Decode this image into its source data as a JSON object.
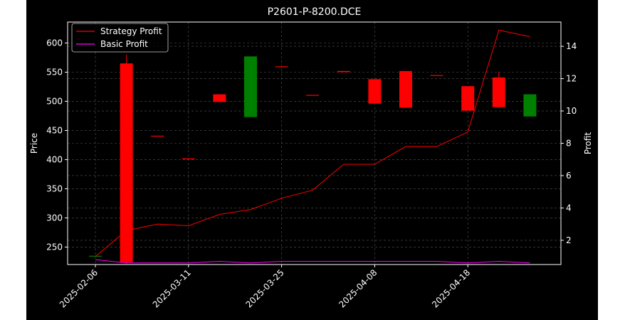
{
  "chart_data": {
    "type": "candlestick",
    "title": "P2601-P-8200.DCE",
    "ylabel": "Price",
    "y2label": "Profit",
    "ylim": [
      220,
      636
    ],
    "y2lim": [
      0.5,
      15.5
    ],
    "grid": true,
    "legend_position": "upper-left",
    "x_ticks": [
      "2025-02-06",
      "2025-03-11",
      "2025-03-25",
      "2025-04-08",
      "2025-04-18"
    ],
    "x_tick_index": [
      0,
      3,
      6,
      9,
      12
    ],
    "yticks": [
      250,
      300,
      350,
      400,
      450,
      500,
      550,
      600
    ],
    "y2ticks": [
      2,
      4,
      6,
      8,
      10,
      12,
      14
    ],
    "candles": [
      {
        "open": 235,
        "close": 235,
        "high": 235,
        "low": 235
      },
      {
        "open": 565,
        "close": 224,
        "high": 580,
        "low": 222
      },
      {
        "open": 441,
        "close": 440,
        "high": 441,
        "low": 440
      },
      {
        "open": 402,
        "close": 401,
        "high": 402,
        "low": 401
      },
      {
        "open": 512,
        "close": 499,
        "high": 512,
        "low": 499
      },
      {
        "open": 473,
        "close": 577,
        "high": 577,
        "low": 473
      },
      {
        "open": 560,
        "close": 559,
        "high": 560,
        "low": 559
      },
      {
        "open": 511,
        "close": 510,
        "high": 511,
        "low": 510
      },
      {
        "open": 552,
        "close": 550,
        "high": 552,
        "low": 550
      },
      {
        "open": 538,
        "close": 496,
        "high": 538,
        "low": 496
      },
      {
        "open": 552,
        "close": 489,
        "high": 552,
        "low": 489
      },
      {
        "open": 545,
        "close": 544,
        "high": 545,
        "low": 544
      },
      {
        "open": 526,
        "close": 484,
        "high": 526,
        "low": 484
      },
      {
        "open": 541,
        "close": 490,
        "high": 551,
        "low": 490
      },
      {
        "open": 474,
        "close": 512,
        "high": 512,
        "low": 474
      }
    ],
    "series": [
      {
        "name": "Strategy Profit",
        "color": "#ff0000",
        "values": [
          1.0,
          2.6,
          3.0,
          2.9,
          3.6,
          3.9,
          4.6,
          5.1,
          6.7,
          6.7,
          7.8,
          7.8,
          8.7,
          15.0,
          14.6
        ]
      },
      {
        "name": "Basic Profit",
        "color": "#ff00ff",
        "values": [
          0.8,
          0.6,
          0.6,
          0.6,
          0.7,
          0.6,
          0.7,
          0.7,
          0.7,
          0.7,
          0.7,
          0.7,
          0.6,
          0.7,
          0.6
        ]
      }
    ],
    "colors": {
      "up": "#008000",
      "down": "#ff0000",
      "grid": "#555555",
      "frame": "#ffffff",
      "background": "#000000"
    }
  }
}
